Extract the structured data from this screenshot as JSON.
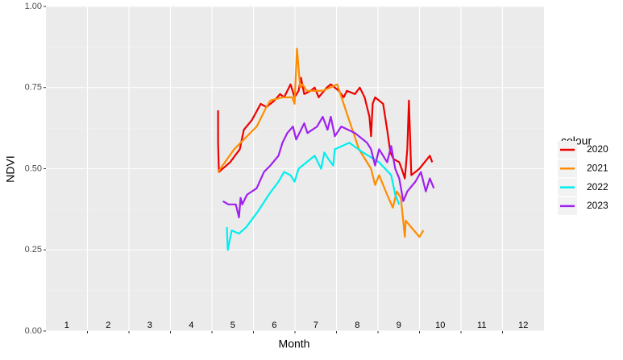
{
  "chart_data": {
    "type": "line",
    "xlabel": "Month",
    "ylabel": "NDVI",
    "legend_title": "colour",
    "xlim": [
      0.5,
      12.5
    ],
    "ylim": [
      0,
      1
    ],
    "xticks": [
      1.5,
      2.5,
      3.5,
      4.5,
      5.5,
      6.5,
      7.5,
      8.5,
      9.5,
      10.5,
      11.5
    ],
    "yticks": [
      {
        "value": 0,
        "label": "0.00"
      },
      {
        "value": 0.25,
        "label": "0.25"
      },
      {
        "value": 0.5,
        "label": "0.50"
      },
      {
        "value": 0.75,
        "label": "0.75"
      },
      {
        "value": 1,
        "label": "1.00"
      }
    ],
    "yminor": [
      0.125,
      0.375,
      0.625,
      0.875
    ],
    "month_labels": [
      1,
      2,
      3,
      4,
      5,
      6,
      7,
      8,
      9,
      10,
      11,
      12
    ],
    "grid": true,
    "legend": "right",
    "series": [
      {
        "name": "2020",
        "color": "#ee0000",
        "x": [
          4.647,
          4.647,
          4.667,
          4.938,
          5.171,
          5.268,
          5.462,
          5.675,
          5.811,
          6.005,
          6.141,
          6.238,
          6.393,
          6.49,
          6.587,
          6.645,
          6.723,
          6.878,
          6.975,
          7.072,
          7.266,
          7.363,
          7.557,
          7.673,
          7.751,
          7.945,
          8.061,
          8.178,
          8.294,
          8.333,
          8.372,
          8.43,
          8.624,
          8.721,
          8.798,
          8.876,
          9.012,
          9.07,
          9.147,
          9.206,
          9.245,
          9.303,
          9.497,
          9.749,
          9.807
        ],
        "values": [
          0.68,
          0.58,
          0.49,
          0.52,
          0.56,
          0.62,
          0.65,
          0.7,
          0.69,
          0.71,
          0.73,
          0.72,
          0.76,
          0.72,
          0.74,
          0.78,
          0.73,
          0.74,
          0.75,
          0.72,
          0.75,
          0.76,
          0.74,
          0.72,
          0.74,
          0.73,
          0.75,
          0.72,
          0.66,
          0.6,
          0.7,
          0.72,
          0.7,
          0.62,
          0.55,
          0.53,
          0.52,
          0.5,
          0.47,
          0.56,
          0.71,
          0.48,
          0.5,
          0.54,
          0.52
        ]
      },
      {
        "name": "2021",
        "color": "#ff8c00",
        "x": [
          4.647,
          5.035,
          5.578,
          5.811,
          5.908,
          6.199,
          6.432,
          6.49,
          6.548,
          6.626,
          6.684,
          6.781,
          7.169,
          7.518,
          7.751,
          8.042,
          8.333,
          8.43,
          8.527,
          8.721,
          8.857,
          8.954,
          9.051,
          9.147,
          9.167,
          9.497,
          9.594
        ],
        "values": [
          0.49,
          0.56,
          0.63,
          0.69,
          0.71,
          0.72,
          0.72,
          0.7,
          0.87,
          0.75,
          0.76,
          0.74,
          0.74,
          0.76,
          0.67,
          0.56,
          0.5,
          0.45,
          0.48,
          0.42,
          0.38,
          0.43,
          0.41,
          0.29,
          0.34,
          0.29,
          0.31
        ]
      },
      {
        "name": "2022",
        "color": "#00eeee",
        "x": [
          4.86,
          4.88,
          4.977,
          5.151,
          5.326,
          5.617,
          5.869,
          6.102,
          6.238,
          6.393,
          6.49,
          6.587,
          6.878,
          6.975,
          7.13,
          7.208,
          7.305,
          7.421,
          7.46,
          7.809,
          8.139,
          8.527,
          8.818,
          8.915,
          9.012
        ],
        "values": [
          0.32,
          0.25,
          0.31,
          0.3,
          0.32,
          0.37,
          0.42,
          0.46,
          0.49,
          0.48,
          0.46,
          0.5,
          0.53,
          0.54,
          0.5,
          0.55,
          0.53,
          0.51,
          0.56,
          0.58,
          0.55,
          0.52,
          0.48,
          0.42,
          0.39
        ]
      },
      {
        "name": "2023",
        "color": "#a020f0",
        "x": [
          4.763,
          4.899,
          5.074,
          5.151,
          5.19,
          5.229,
          5.345,
          5.578,
          5.753,
          5.908,
          6.102,
          6.199,
          6.315,
          6.451,
          6.529,
          6.723,
          6.8,
          7.033,
          7.169,
          7.285,
          7.363,
          7.46,
          7.615,
          7.945,
          8.236,
          8.333,
          8.43,
          8.527,
          8.721,
          8.818,
          8.915,
          9.012,
          9.109,
          9.206,
          9.4,
          9.535,
          9.652,
          9.749,
          9.846
        ],
        "values": [
          0.4,
          0.39,
          0.39,
          0.35,
          0.41,
          0.39,
          0.42,
          0.44,
          0.49,
          0.51,
          0.54,
          0.58,
          0.61,
          0.63,
          0.59,
          0.64,
          0.61,
          0.63,
          0.66,
          0.62,
          0.66,
          0.6,
          0.63,
          0.61,
          0.58,
          0.56,
          0.51,
          0.56,
          0.52,
          0.57,
          0.5,
          0.47,
          0.4,
          0.43,
          0.46,
          0.49,
          0.43,
          0.47,
          0.44
        ]
      }
    ]
  }
}
